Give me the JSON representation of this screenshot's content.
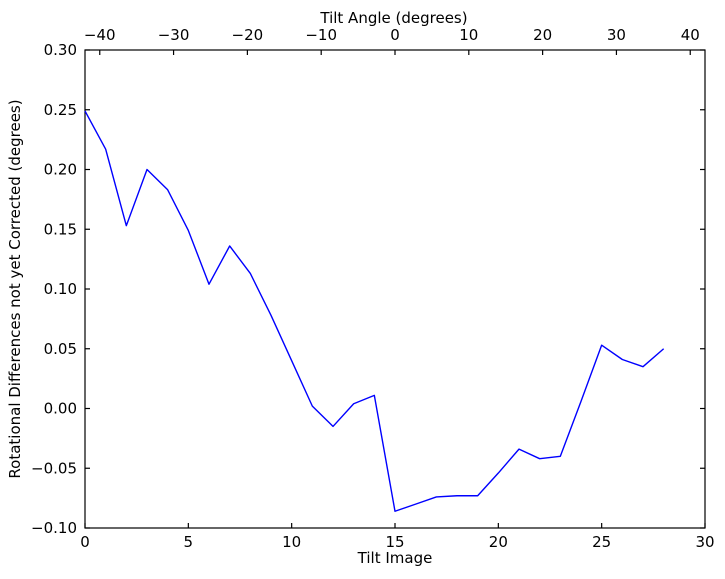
{
  "figure": {
    "background": "#ffffff",
    "axis_color": "#000000"
  },
  "chart_data": {
    "type": "line",
    "xlabel": "Tilt Image",
    "top_xlabel": "Tilt Angle (degrees)",
    "ylabel": "Rotational Differences not yet Corrected (degrees)",
    "xlim": [
      0,
      30
    ],
    "top_xlim": [
      -42,
      42
    ],
    "ylim": [
      -0.1,
      0.3
    ],
    "grid": false,
    "legend": "none",
    "x_ticks": {
      "values": [
        0,
        5,
        10,
        15,
        20,
        25,
        30
      ],
      "labels": [
        "0",
        "5",
        "10",
        "15",
        "20",
        "25",
        "30"
      ]
    },
    "top_x_ticks": {
      "values": [
        -40,
        -30,
        -20,
        -10,
        0,
        10,
        20,
        30,
        40
      ],
      "labels": [
        "−40",
        "−30",
        "−20",
        "−10",
        "0",
        "10",
        "20",
        "30",
        "40"
      ]
    },
    "y_ticks": {
      "values": [
        0.3,
        0.25,
        0.2,
        0.15,
        0.1,
        0.05,
        0.0,
        -0.05,
        -0.1
      ],
      "labels": [
        "0.30",
        "0.25",
        "0.20",
        "0.15",
        "0.10",
        "0.05",
        "0.00",
        "−0.05",
        "−0.10"
      ]
    },
    "series": [
      {
        "name": "rotational-differences",
        "color": "#0000ff",
        "x": [
          0,
          1,
          2,
          3,
          4,
          5,
          6,
          7,
          8,
          9,
          10,
          11,
          12,
          13,
          14,
          15,
          16,
          17,
          18,
          19,
          20,
          21,
          22,
          23,
          24,
          25,
          26,
          27,
          28
        ],
        "y": [
          0.249,
          0.217,
          0.153,
          0.2,
          0.183,
          0.149,
          0.104,
          0.136,
          0.113,
          0.078,
          0.04,
          0.002,
          -0.015,
          0.004,
          0.011,
          -0.086,
          -0.08,
          -0.074,
          -0.073,
          -0.073,
          -0.054,
          -0.034,
          -0.042,
          -0.04,
          0.006,
          0.053,
          0.041,
          0.035,
          0.05
        ]
      }
    ]
  }
}
